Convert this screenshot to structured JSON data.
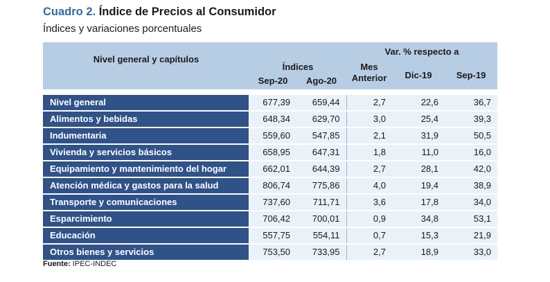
{
  "title": {
    "number": "Cuadro 2.",
    "text": "Índice de Precios al Consumidor"
  },
  "subtitle": "Índices y variaciones porcentuales",
  "headers": {
    "category": "Nivel general y capítulos",
    "indices": "Índices",
    "var_group": "Var. % respecto a",
    "sep20": "Sep-20",
    "ago20": "Ago-20",
    "mes_line1": "Mes",
    "mes_line2": "Anterior",
    "dic19": "Dic-19",
    "sep19": "Sep-19"
  },
  "rows": [
    {
      "label": "Nivel general",
      "sep20": "677,39",
      "ago20": "659,44",
      "mes": "2,7",
      "dic19": "22,6",
      "sep19": "36,7"
    },
    {
      "label": "Alimentos y bebidas",
      "sep20": "648,34",
      "ago20": "629,70",
      "mes": "3,0",
      "dic19": "25,4",
      "sep19": "39,3"
    },
    {
      "label": "Indumentaria",
      "sep20": "559,60",
      "ago20": "547,85",
      "mes": "2,1",
      "dic19": "31,9",
      "sep19": "50,5"
    },
    {
      "label": "Vivienda y servicios básicos",
      "sep20": "658,95",
      "ago20": "647,31",
      "mes": "1,8",
      "dic19": "11,0",
      "sep19": "16,0"
    },
    {
      "label": "Equipamiento y mantenimiento del hogar",
      "sep20": "662,01",
      "ago20": "644,39",
      "mes": "2,7",
      "dic19": "28,1",
      "sep19": "42,0"
    },
    {
      "label": "Atención médica y gastos para la salud",
      "sep20": "806,74",
      "ago20": "775,86",
      "mes": "4,0",
      "dic19": "19,4",
      "sep19": "38,9"
    },
    {
      "label": "Transporte y comunicaciones",
      "sep20": "737,60",
      "ago20": "711,71",
      "mes": "3,6",
      "dic19": "17,8",
      "sep19": "34,0"
    },
    {
      "label": "Esparcimiento",
      "sep20": "706,42",
      "ago20": "700,01",
      "mes": "0,9",
      "dic19": "34,8",
      "sep19": "53,1"
    },
    {
      "label": "Educación",
      "sep20": "557,75",
      "ago20": "554,11",
      "mes": "0,7",
      "dic19": "15,3",
      "sep19": "21,9"
    },
    {
      "label": "Otros bienes y servicios",
      "sep20": "753,50",
      "ago20": "733,95",
      "mes": "2,7",
      "dic19": "18,9",
      "sep19": "33,0"
    }
  ],
  "source": {
    "label": "Fuente:",
    "text": "IPEC-INDEC"
  },
  "colors": {
    "title_accent": "#2e6da4",
    "header_bg": "#b7cde4",
    "category_bg": "#2f5289",
    "value_bg": "#eaf1f9"
  }
}
